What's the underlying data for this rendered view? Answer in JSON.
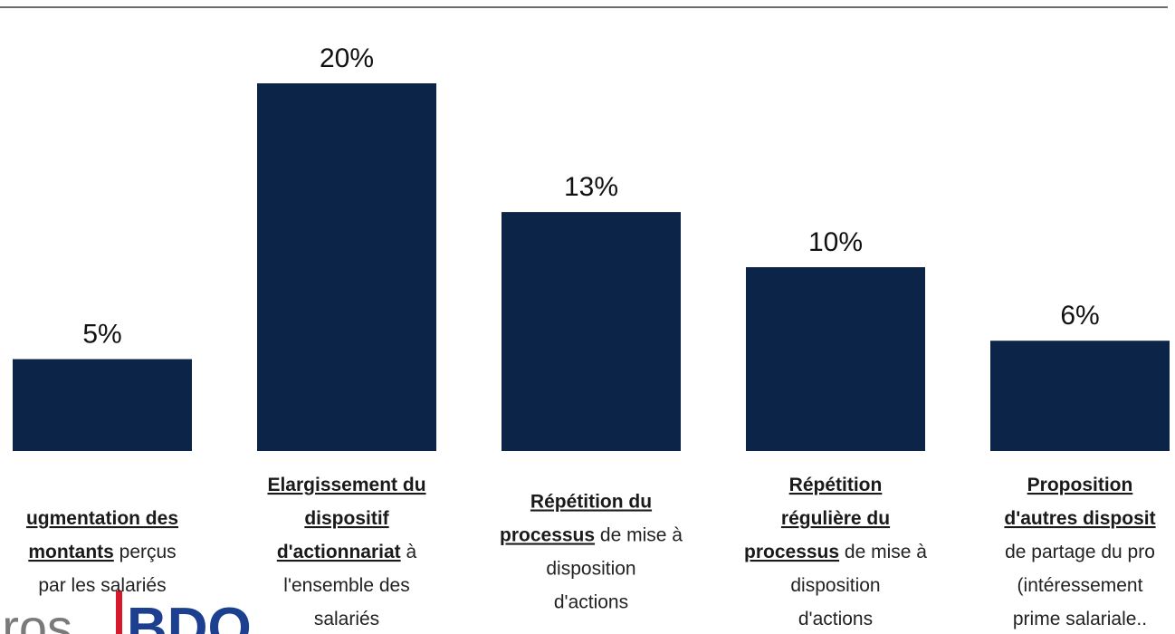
{
  "chart_data": {
    "type": "bar",
    "categories": [
      [
        [
          {
            "text": "ugmentation des",
            "bold": true
          }
        ],
        [
          {
            "text": "montants",
            "bold": true
          },
          {
            "text": " perçus",
            "bold": false
          }
        ],
        [
          {
            "text": "par les salariés",
            "bold": false
          }
        ]
      ],
      [
        [
          {
            "text": "Elargissement du",
            "bold": true
          }
        ],
        [
          {
            "text": "dispositif",
            "bold": true
          }
        ],
        [
          {
            "text": "d'actionnariat",
            "bold": true
          },
          {
            "text": " à",
            "bold": false
          }
        ],
        [
          {
            "text": "l'ensemble des",
            "bold": false
          }
        ],
        [
          {
            "text": "salariés",
            "bold": false
          }
        ]
      ],
      [
        [
          {
            "text": "Répétition du",
            "bold": true
          }
        ],
        [
          {
            "text": "processus",
            "bold": true
          },
          {
            "text": " de mise à",
            "bold": false
          }
        ],
        [
          {
            "text": "disposition",
            "bold": false
          }
        ],
        [
          {
            "text": "d'actions",
            "bold": false
          }
        ]
      ],
      [
        [
          {
            "text": "Répétition",
            "bold": true
          }
        ],
        [
          {
            "text": "régulière du",
            "bold": true
          }
        ],
        [
          {
            "text": "processus",
            "bold": true
          },
          {
            "text": " de mise à",
            "bold": false
          }
        ],
        [
          {
            "text": "disposition",
            "bold": false
          }
        ],
        [
          {
            "text": "d'actions",
            "bold": false
          }
        ]
      ],
      [
        [
          {
            "text": "Proposition",
            "bold": true
          }
        ],
        [
          {
            "text": "d'autres disposit",
            "bold": true
          }
        ],
        [
          {
            "text": "de partage du pro",
            "bold": false
          }
        ],
        [
          {
            "text": "(intéressement",
            "bold": false
          }
        ],
        [
          {
            "text": "prime salariale..",
            "bold": false
          }
        ]
      ]
    ],
    "values": [
      5,
      20,
      13,
      10,
      6
    ],
    "value_labels": [
      "5%",
      "20%",
      "13%",
      "10%",
      "6%"
    ],
    "color": "#0b2447",
    "logos": [
      "ros",
      "BDO"
    ]
  }
}
